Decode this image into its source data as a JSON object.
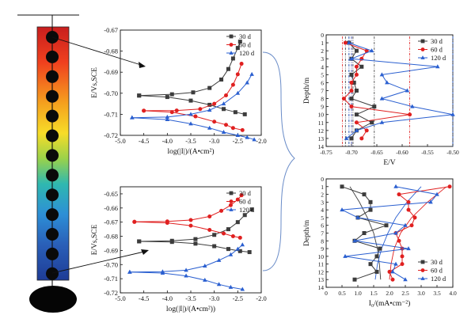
{
  "colors": {
    "s30": "#3c3c3c",
    "s60": "#e02020",
    "s120": "#2a5fd0",
    "dot": "#0a0a0a",
    "axis": "#111111"
  },
  "chart_data": [
    {
      "id": "tafel-top",
      "type": "line",
      "xlabel": "log(|I|)/(A•cm²)",
      "ylabel": "E/Vs,SCE",
      "xlim": [
        -5.0,
        -2.0
      ],
      "ylim": [
        -0.72,
        -0.67
      ],
      "xticks": [
        -5.0,
        -4.5,
        -4.0,
        -3.5,
        -3.0,
        -2.5,
        -2.0
      ],
      "xtick_labels": [
        "-5.0",
        "-4.5",
        "-4.0",
        "-3.5",
        "-3.0",
        "-2.5",
        "-2.0"
      ],
      "yticks": [
        -0.72,
        -0.71,
        -0.7,
        -0.69,
        -0.68,
        -0.67
      ],
      "ytick_labels": [
        "-0.72",
        "-0.71",
        "-0.70",
        "-0.69",
        "-0.68",
        "-0.67"
      ],
      "legend": {
        "position": "top-right",
        "entries": [
          "30 d",
          "60 d",
          "120 d"
        ]
      },
      "series": [
        {
          "name": "30 d",
          "marker": "square",
          "color_key": "s30",
          "x": [
            -4.6,
            -3.9,
            -3.45,
            -3.1,
            -2.85,
            -2.7,
            -2.6,
            -2.5,
            -2.45
          ],
          "y": [
            -0.7011,
            -0.7005,
            -0.6996,
            -0.6975,
            -0.6935,
            -0.6885,
            -0.6835,
            -0.6785,
            -0.6755
          ]
        },
        {
          "name": "30 d",
          "marker": "square",
          "color_key": "s30",
          "x": [
            -4.6,
            -4.0,
            -3.5,
            -3.1,
            -2.8,
            -2.55,
            -2.35
          ],
          "y": [
            -0.7011,
            -0.7018,
            -0.7035,
            -0.7055,
            -0.7075,
            -0.709,
            -0.71
          ]
        },
        {
          "name": "60 d",
          "marker": "circle",
          "color_key": "s60",
          "x": [
            -4.5,
            -3.8,
            -3.3,
            -3.0,
            -2.75,
            -2.6,
            -2.5,
            -2.42
          ],
          "y": [
            -0.7083,
            -0.7082,
            -0.7075,
            -0.705,
            -0.701,
            -0.696,
            -0.691,
            -0.686
          ]
        },
        {
          "name": "60 d",
          "marker": "circle",
          "color_key": "s60",
          "x": [
            -4.5,
            -3.9,
            -3.4,
            -3.0,
            -2.75,
            -2.6,
            -2.4
          ],
          "y": [
            -0.7083,
            -0.709,
            -0.711,
            -0.7135,
            -0.715,
            -0.7165,
            -0.7175
          ]
        },
        {
          "name": "120 d",
          "marker": "triangle",
          "color_key": "s120",
          "x": [
            -4.75,
            -4.0,
            -3.5,
            -3.1,
            -2.8,
            -2.5,
            -2.3,
            -2.2
          ],
          "y": [
            -0.7116,
            -0.7113,
            -0.71,
            -0.708,
            -0.705,
            -0.7,
            -0.695,
            -0.691
          ]
        },
        {
          "name": "120 d",
          "marker": "triangle",
          "color_key": "s120",
          "x": [
            -4.75,
            -4.0,
            -3.5,
            -3.1,
            -2.8,
            -2.5,
            -2.3,
            -2.15
          ],
          "y": [
            -0.7116,
            -0.7125,
            -0.7145,
            -0.7165,
            -0.7185,
            -0.72,
            -0.721,
            -0.722
          ]
        }
      ]
    },
    {
      "id": "tafel-bottom",
      "type": "line",
      "xlabel": "log(|I|)/(A•cm²))",
      "ylabel": "E/Vs,SCE",
      "xlim": [
        -5.0,
        -2.0
      ],
      "ylim": [
        -0.72,
        -0.645
      ],
      "xticks": [
        -5.0,
        -4.5,
        -4.0,
        -3.5,
        -3.0,
        -2.5,
        -2.0
      ],
      "xtick_labels": [
        "-5.0",
        "-4.5",
        "-4.0",
        "-3.5",
        "-3.0",
        "-2.5",
        "-2.0"
      ],
      "yticks": [
        -0.72,
        -0.71,
        -0.7,
        -0.69,
        -0.68,
        -0.67,
        -0.66,
        -0.65
      ],
      "ytick_labels": [
        "-0.72",
        "-0.71",
        "-0.70",
        "-0.69",
        "-0.68",
        "-0.67",
        "-0.66",
        "-0.65"
      ],
      "legend": {
        "position": "top-right",
        "entries": [
          "30 d",
          "60 d",
          "120 d"
        ]
      },
      "series": [
        {
          "name": "30 d",
          "marker": "square",
          "color_key": "s30",
          "x": [
            -4.6,
            -3.9,
            -3.4,
            -3.0,
            -2.7,
            -2.5,
            -2.35,
            -2.2
          ],
          "y": [
            -0.6836,
            -0.6832,
            -0.682,
            -0.679,
            -0.675,
            -0.67,
            -0.665,
            -0.661
          ]
        },
        {
          "name": "30 d",
          "marker": "square",
          "color_key": "s30",
          "x": [
            -4.6,
            -3.9,
            -3.4,
            -3.0,
            -2.7,
            -2.45,
            -2.25
          ],
          "y": [
            -0.6836,
            -0.684,
            -0.6852,
            -0.687,
            -0.689,
            -0.6905,
            -0.6912
          ]
        },
        {
          "name": "60 d",
          "marker": "circle",
          "color_key": "s60",
          "x": [
            -4.7,
            -4.0,
            -3.5,
            -3.1,
            -2.85,
            -2.65,
            -2.5,
            -2.42
          ],
          "y": [
            -0.6698,
            -0.6695,
            -0.6685,
            -0.666,
            -0.662,
            -0.658,
            -0.654,
            -0.651
          ]
        },
        {
          "name": "60 d",
          "marker": "circle",
          "color_key": "s60",
          "x": [
            -4.7,
            -4.0,
            -3.5,
            -3.1,
            -2.8,
            -2.6,
            -2.45
          ],
          "y": [
            -0.6698,
            -0.6705,
            -0.6725,
            -0.6755,
            -0.678,
            -0.68,
            -0.681
          ]
        },
        {
          "name": "120 d",
          "marker": "triangle",
          "color_key": "s120",
          "x": [
            -4.8,
            -4.1,
            -3.6,
            -3.2,
            -2.9,
            -2.65,
            -2.5,
            -2.4
          ],
          "y": [
            -0.7053,
            -0.705,
            -0.704,
            -0.701,
            -0.697,
            -0.693,
            -0.689,
            -0.686
          ]
        },
        {
          "name": "120 d",
          "marker": "triangle",
          "color_key": "s120",
          "x": [
            -4.8,
            -4.1,
            -3.6,
            -3.2,
            -2.9,
            -2.65,
            -2.4
          ],
          "y": [
            -0.7053,
            -0.706,
            -0.708,
            -0.711,
            -0.714,
            -0.716,
            -0.7175
          ]
        }
      ]
    },
    {
      "id": "potential-profile",
      "type": "line",
      "xlabel": "E/V",
      "ylabel": "Depth/m",
      "xlim": [
        -0.75,
        -0.5
      ],
      "ylim": [
        0,
        14
      ],
      "y_inverted": true,
      "xticks": [
        -0.75,
        -0.7,
        -0.65,
        -0.6,
        -0.55,
        -0.5
      ],
      "xtick_labels": [
        "-0.75",
        "-0.70",
        "-0.65",
        "-0.60",
        "-0.55",
        "-0.50"
      ],
      "yticks": [
        0,
        1,
        2,
        3,
        4,
        5,
        6,
        7,
        8,
        9,
        10,
        11,
        12,
        13,
        14
      ],
      "ytick_labels": [
        "0",
        "1",
        "2",
        "3",
        "4",
        "5",
        "6",
        "7",
        "8",
        "9",
        "10",
        "11",
        "12",
        "13",
        "14"
      ],
      "legend": {
        "position": "top-right",
        "entries": [
          "30 d",
          "60 d",
          "120 d"
        ]
      },
      "vlines": [
        {
          "color_key": "s30",
          "x": [
            -0.712,
            -0.705,
            -0.697,
            -0.655
          ]
        },
        {
          "color_key": "s60",
          "x": [
            -0.718,
            -0.7,
            -0.585
          ]
        },
        {
          "color_key": "s120",
          "x": [
            -0.705,
            -0.7,
            -0.5
          ]
        }
      ],
      "series": [
        {
          "name": "30 d",
          "marker": "square",
          "color_key": "s30",
          "y": [
            1,
            2,
            3,
            4,
            5,
            6,
            7,
            8,
            9,
            10,
            11,
            12,
            13
          ],
          "x": [
            -0.705,
            -0.69,
            -0.7,
            -0.68,
            -0.7,
            -0.695,
            -0.69,
            -0.7,
            -0.655,
            -0.69,
            -0.66,
            -0.69,
            -0.7
          ]
        },
        {
          "name": "60 d",
          "marker": "circle",
          "color_key": "s60",
          "y": [
            1,
            2,
            3,
            4,
            5,
            6,
            7,
            8,
            9,
            10,
            11,
            12,
            13
          ],
          "x": [
            -0.712,
            -0.67,
            -0.68,
            -0.69,
            -0.69,
            -0.7,
            -0.7,
            -0.715,
            -0.7,
            -0.585,
            -0.69,
            -0.67,
            -0.68
          ]
        },
        {
          "name": "120 d",
          "marker": "triangle",
          "color_key": "s120",
          "y": [
            1,
            2,
            3,
            4,
            5,
            6,
            7,
            8,
            9,
            10,
            11,
            12,
            13
          ],
          "x": [
            -0.705,
            -0.66,
            -0.7,
            -0.53,
            -0.64,
            -0.63,
            -0.59,
            -0.64,
            -0.58,
            -0.5,
            -0.64,
            -0.69,
            -0.71
          ]
        }
      ]
    },
    {
      "id": "current-profile",
      "type": "line",
      "xlabel": "I₀/(mA•cm⁻²)",
      "ylabel": "Depth/m",
      "xlim": [
        0,
        4.0
      ],
      "ylim": [
        0,
        14
      ],
      "y_inverted": true,
      "xticks": [
        0,
        0.5,
        1.0,
        1.5,
        2.0,
        2.5,
        3.0,
        3.5,
        4.0
      ],
      "xtick_labels": [
        "0",
        "0.5",
        "1.0",
        "1.5",
        "2.0",
        "2.5",
        "3.0",
        "3.5",
        "4.0"
      ],
      "yticks": [
        0,
        1,
        2,
        3,
        4,
        5,
        6,
        7,
        8,
        9,
        10,
        11,
        12,
        13,
        14
      ],
      "ytick_labels": [
        "0",
        "1",
        "2",
        "3",
        "4",
        "5",
        "6",
        "7",
        "8",
        "9",
        "10",
        "11",
        "12",
        "13",
        "14"
      ],
      "legend": {
        "position": "bottom-right",
        "entries": [
          "30 d",
          "60 d",
          "120 d"
        ]
      },
      "trend": [
        {
          "color_key": "s30",
          "y": [
            1,
            3,
            5,
            7,
            9,
            11,
            13
          ],
          "x": [
            0.75,
            1.05,
            1.3,
            1.5,
            1.62,
            1.68,
            1.72
          ]
        },
        {
          "color_key": "s60",
          "y": [
            13,
            11,
            9,
            7,
            5,
            3,
            1
          ],
          "x": [
            2.0,
            2.05,
            2.15,
            2.35,
            2.7,
            3.2,
            3.8
          ]
        },
        {
          "color_key": "s120",
          "y": [
            13,
            11,
            9,
            7,
            5,
            3,
            1
          ],
          "x": [
            1.55,
            1.62,
            1.75,
            1.95,
            2.2,
            2.55,
            3.0
          ]
        }
      ],
      "series": [
        {
          "name": "30 d",
          "marker": "square",
          "color_key": "s30",
          "y": [
            1,
            2,
            3,
            4,
            5,
            6,
            7,
            8,
            9,
            10,
            11,
            12,
            13
          ],
          "x": [
            0.5,
            1.2,
            1.4,
            1.4,
            1.0,
            1.9,
            1.2,
            0.9,
            1.7,
            1.6,
            1.4,
            1.6,
            0.9
          ]
        },
        {
          "name": "60 d",
          "marker": "circle",
          "color_key": "s60",
          "y": [
            1,
            2,
            3,
            4,
            5,
            6,
            7,
            8,
            9,
            10,
            11,
            12,
            13
          ],
          "x": [
            3.9,
            2.3,
            2.6,
            2.6,
            2.8,
            2.7,
            2.2,
            2.3,
            2.4,
            2.4,
            2.4,
            2.0,
            2.1
          ]
        },
        {
          "name": "120 d",
          "marker": "triangle",
          "color_key": "s120",
          "y": [
            1,
            2,
            3,
            4,
            5,
            6,
            7,
            8,
            9,
            10,
            11,
            12,
            13
          ],
          "x": [
            2.2,
            3.5,
            3.3,
            0.5,
            1.0,
            2.5,
            2.2,
            0.9,
            2.6,
            0.6,
            2.2,
            2.1,
            2.5
          ]
        }
      ]
    }
  ]
}
